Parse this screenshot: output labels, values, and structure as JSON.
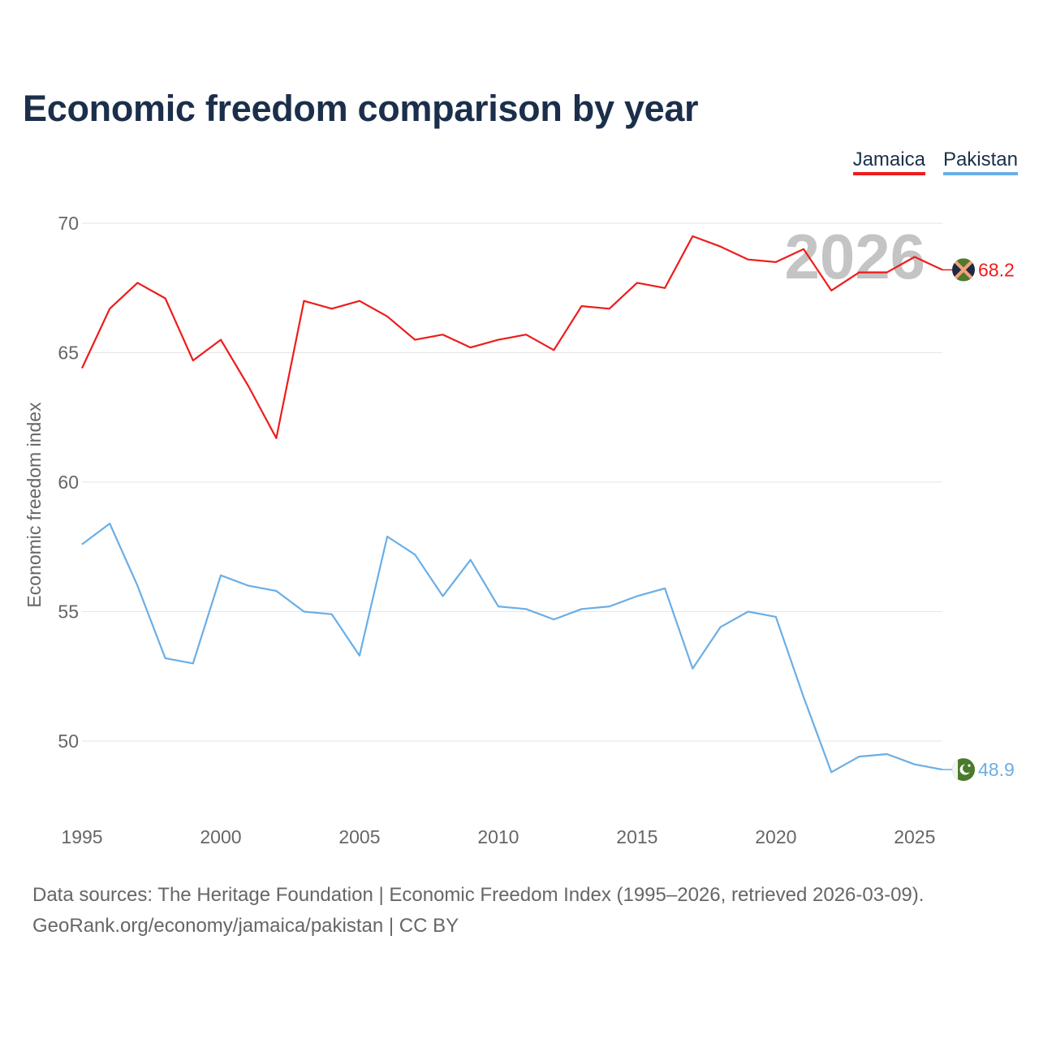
{
  "title": "Economic freedom comparison by year",
  "legend": [
    {
      "label": "Jamaica",
      "color": "#ee1c1c"
    },
    {
      "label": "Pakistan",
      "color": "#6aaee6"
    }
  ],
  "footer": {
    "line1": "Data sources: The Heritage Foundation | Economic Freedom Index (1995–2026, retrieved 2026-03-09).",
    "line2": "GeoRank.org/economy/jamaica/pakistan | CC BY"
  },
  "chart_data": {
    "type": "line",
    "title": "Economic freedom comparison by year",
    "xlabel": "",
    "ylabel": "Economic freedom index",
    "xlim": [
      1995,
      2026
    ],
    "ylim": [
      47,
      71
    ],
    "x_ticks": [
      1995,
      2000,
      2005,
      2010,
      2015,
      2020,
      2025
    ],
    "y_ticks": [
      50,
      55,
      60,
      65,
      70
    ],
    "grid": true,
    "legend_position": "top-right",
    "current_year_label": "2026",
    "x": [
      1995,
      1996,
      1997,
      1998,
      1999,
      2000,
      2001,
      2002,
      2003,
      2004,
      2005,
      2006,
      2007,
      2008,
      2009,
      2010,
      2011,
      2012,
      2013,
      2014,
      2015,
      2016,
      2017,
      2018,
      2019,
      2020,
      2021,
      2022,
      2023,
      2024,
      2025,
      2026
    ],
    "series": [
      {
        "name": "Jamaica",
        "color": "#ee1c1c",
        "end_label": "68.2",
        "flag_icon": "jamaica-flag-icon",
        "values": [
          64.4,
          66.7,
          67.7,
          67.1,
          64.7,
          65.5,
          63.7,
          61.7,
          67.0,
          66.7,
          67.0,
          66.4,
          65.5,
          65.7,
          65.2,
          65.5,
          65.7,
          65.1,
          66.8,
          66.7,
          67.7,
          67.5,
          69.5,
          69.1,
          68.6,
          68.5,
          69.0,
          67.4,
          68.1,
          68.1,
          68.7,
          68.2
        ]
      },
      {
        "name": "Pakistan",
        "color": "#6aaee6",
        "end_label": "48.9",
        "flag_icon": "pakistan-flag-icon",
        "values": [
          57.6,
          58.4,
          56.0,
          53.2,
          53.0,
          56.4,
          56.0,
          55.8,
          55.0,
          54.9,
          53.3,
          57.9,
          57.2,
          55.6,
          57.0,
          55.2,
          55.1,
          54.7,
          55.1,
          55.2,
          55.6,
          55.9,
          52.8,
          54.4,
          55.0,
          54.8,
          51.7,
          48.8,
          49.4,
          49.5,
          49.1,
          48.9
        ]
      }
    ]
  }
}
